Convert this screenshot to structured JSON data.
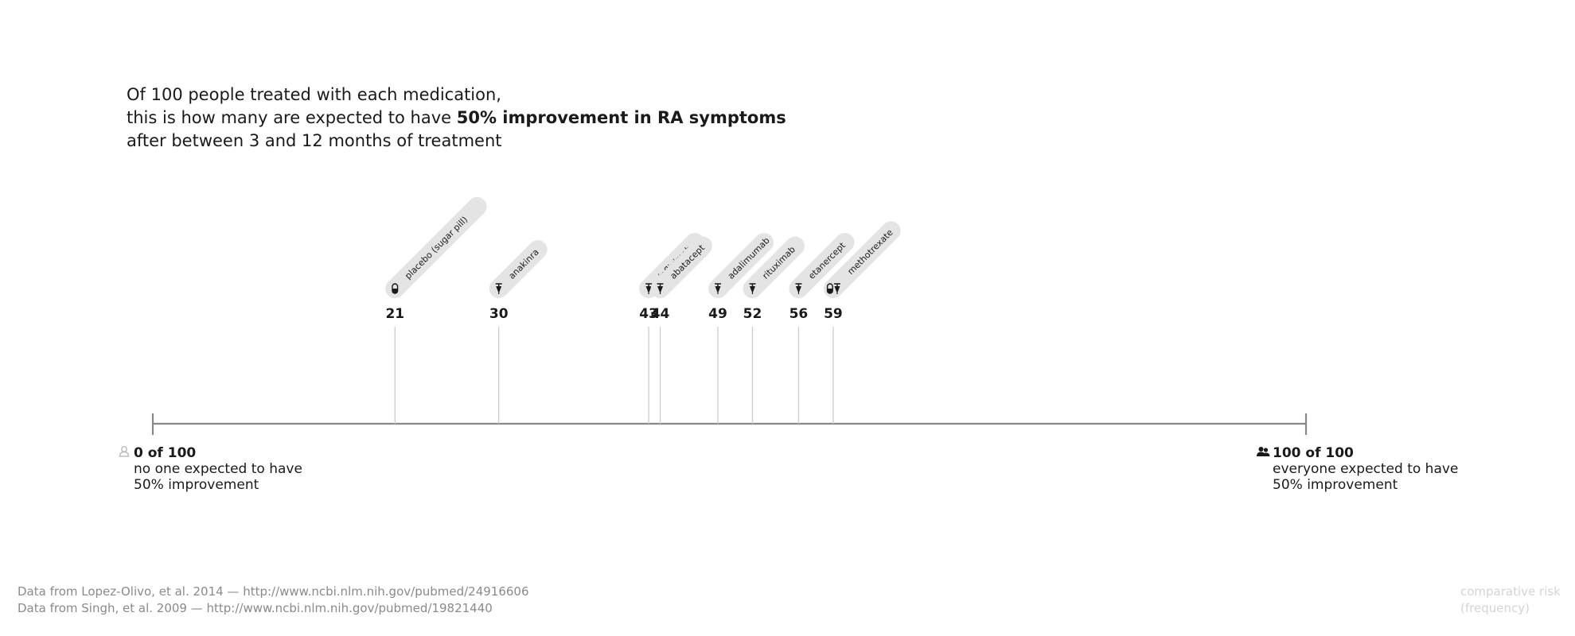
{
  "title": {
    "line1": "Of 100 people treated with each medication,",
    "line2_prefix": "this is how many are expected to have ",
    "line2_bold": "50% improvement in RA symptoms",
    "line3": "after between 3 and 12 months of treatment"
  },
  "chart_data": {
    "type": "scatter",
    "xlim": [
      0,
      100
    ],
    "points": [
      {
        "label": "placebo (sugar pill)",
        "value": 21,
        "icon": "pill-icon"
      },
      {
        "label": "anakinra",
        "value": 30,
        "icon": "syringe-icon"
      },
      {
        "label": "infliximab",
        "value": 43,
        "icon": "syringe-icon"
      },
      {
        "label": "abatacept",
        "value": 44,
        "icon": "syringe-icon"
      },
      {
        "label": "adalimumab",
        "value": 49,
        "icon": "syringe-icon"
      },
      {
        "label": "rituximab",
        "value": 52,
        "icon": "syringe-icon"
      },
      {
        "label": "etanercept",
        "value": 56,
        "icon": "syringe-icon"
      },
      {
        "label": "methotrexate",
        "value": 59,
        "icon": "pill-and-syringe-icon"
      }
    ],
    "colors": {
      "axis": "#888888",
      "leader": "#cccccc",
      "label_bg": "#e4e4e4",
      "text": "#1a1a1a"
    }
  },
  "axis_left": {
    "bold": "0 of 100",
    "line1": "no one expected to have",
    "line2": "50% improvement",
    "icon": "person-outline-icon"
  },
  "axis_right": {
    "bold": "100 of 100",
    "line1": "everyone expected to have",
    "line2": "50% improvement",
    "icon": "people-icon"
  },
  "footer": {
    "source1": "Data from Lopez-Olivo, et al. 2014 — http://www.ncbi.nlm.nih.gov/pubmed/24916606",
    "source2": "Data from Singh, et al. 2009 — http://www.ncbi.nlm.nih.gov/pubmed/19821440"
  },
  "corner_label": {
    "line1": "comparative risk",
    "line2": "(frequency)"
  }
}
